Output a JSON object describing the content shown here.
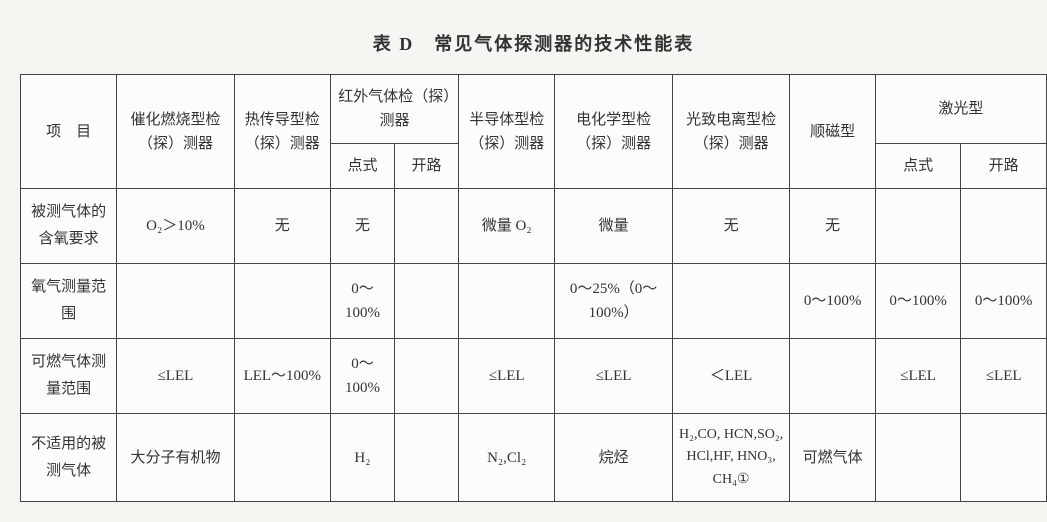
{
  "title": "表 D　常见气体探测器的技术性能表",
  "header": {
    "c0": "项　目",
    "c1": "催化燃烧型检（探）测器",
    "c2": "热传导型检（探）测器",
    "c3": "红外气体检（探）测器",
    "c3a": "点式",
    "c3b": "开路",
    "c4": "半导体型检（探）测器",
    "c5": "电化学型检（探）测器",
    "c6": "光致电离型检（探）测器",
    "c7": "顺磁型",
    "c8": "激光型",
    "c8a": "点式",
    "c8b": "开路"
  },
  "rows": {
    "r1": {
      "label": "被测气体的含氧要求",
      "c1": "O₂＞10%",
      "c2": "无",
      "c3a": "无",
      "c3b": "",
      "c4": "微量 O₂",
      "c5": "微量",
      "c6": "无",
      "c7": "无",
      "c8a": "",
      "c8b": ""
    },
    "r2": {
      "label": "氧气测量范围",
      "c1": "",
      "c2": "",
      "c3a": "0～100%",
      "c3b": "",
      "c4": "",
      "c5": "0～25%（0～100%）",
      "c6": "",
      "c7": "0～100%",
      "c8a": "0～100%",
      "c8b": "0～100%"
    },
    "r3": {
      "label": "可燃气体测量范围",
      "c1": "≤LEL",
      "c2": "LEL～100%",
      "c3a": "0～100%",
      "c3b": "",
      "c4": "≤LEL",
      "c5": "≤LEL",
      "c6": "＜LEL",
      "c7": "",
      "c8a": "≤LEL",
      "c8b": "≤LEL"
    },
    "r4": {
      "label": "不适用的被测气体",
      "c1": "大分子有机物",
      "c2": "",
      "c3a": "H₂",
      "c3b": "",
      "c4": "N₂,Cl₂",
      "c5": "烷烃",
      "c6": "H₂,CO, HCN,SO₂, HCl,HF, HNO₃, CH₄①",
      "c7": "可燃气体",
      "c8a": "",
      "c8b": ""
    }
  },
  "colwidths": {
    "c0": "90px",
    "c1": "110px",
    "c2": "90px",
    "c3a": "60px",
    "c3b": "60px",
    "c4": "90px",
    "c5": "110px",
    "c6": "110px",
    "c7": "80px",
    "c8a": "80px",
    "c8b": "80px"
  }
}
